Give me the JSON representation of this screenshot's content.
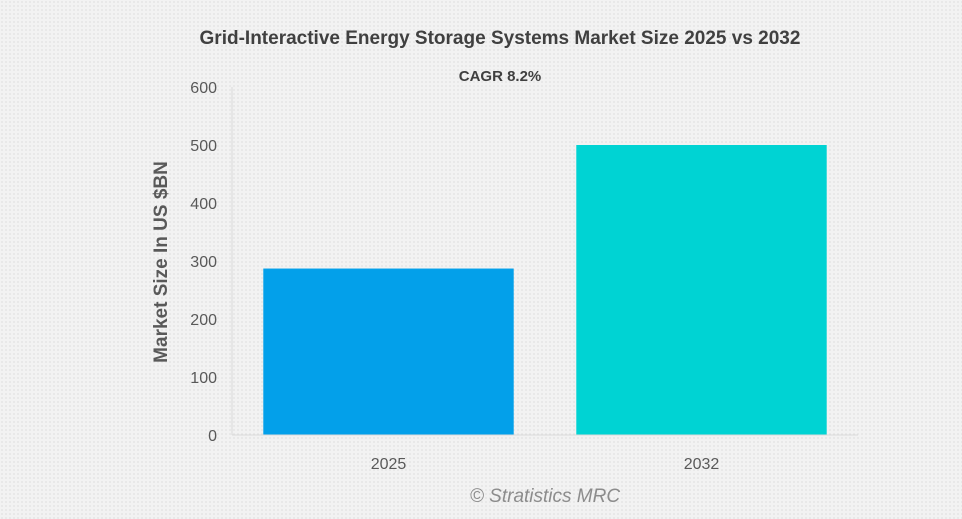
{
  "chart_data": {
    "type": "bar",
    "title": "Grid-Interactive Energy Storage Systems Market Size 2025 vs 2032",
    "subtitle": "CAGR 8.2%",
    "xlabel": "",
    "ylabel": "Market Size In US $BN",
    "categories": [
      "2025",
      "2032"
    ],
    "values": [
      287,
      500
    ],
    "bar_colors": [
      "#03a0ea",
      "#00d3d3"
    ],
    "ylim": [
      0,
      600
    ],
    "yticks": [
      0,
      100,
      200,
      300,
      400,
      500,
      600
    ],
    "grid": false,
    "legend": "none"
  },
  "watermark": "© Stratistics MRC",
  "colors": {
    "title": "#404040",
    "axis_text": "#595959",
    "axis_line": "#d9d9d9",
    "watermark": "#8c8c8c"
  }
}
